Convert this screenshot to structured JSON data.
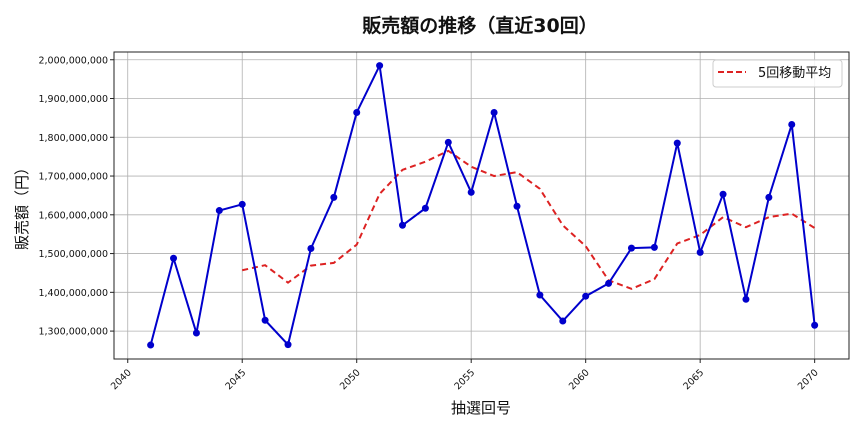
{
  "chart_data": {
    "type": "line",
    "title": "販売額の推移（直近30回）",
    "xlabel": "抽選回号",
    "ylabel": "販売額（円）",
    "x": [
      2041,
      2042,
      2043,
      2044,
      2045,
      2046,
      2047,
      2048,
      2049,
      2050,
      2051,
      2052,
      2053,
      2054,
      2055,
      2056,
      2057,
      2058,
      2059,
      2060,
      2061,
      2062,
      2063,
      2064,
      2065,
      2066,
      2067,
      2068,
      2069,
      2070
    ],
    "series": [
      {
        "name": "販売額",
        "style": "solid-with-markers",
        "color": "#0000cc",
        "values": [
          1264000000,
          1488000000,
          1295000000,
          1611000000,
          1627000000,
          1328000000,
          1265000000,
          1513000000,
          1645000000,
          1864000000,
          1985000000,
          1573000000,
          1617000000,
          1787000000,
          1658000000,
          1864000000,
          1622000000,
          1393000000,
          1326000000,
          1390000000,
          1423000000,
          1514000000,
          1516000000,
          1785000000,
          1503000000,
          1653000000,
          1382000000,
          1645000000,
          1833000000,
          1315000000
        ]
      },
      {
        "name": "5回移動平均",
        "style": "dashed",
        "color": "#dd2222",
        "values": [
          null,
          null,
          null,
          null,
          1457000000,
          1470000000,
          1425000000,
          1469000000,
          1476000000,
          1523000000,
          1654000000,
          1716000000,
          1737000000,
          1765000000,
          1724000000,
          1700000000,
          1710000000,
          1667000000,
          1573000000,
          1519000000,
          1431000000,
          1409000000,
          1434000000,
          1526000000,
          1548000000,
          1594000000,
          1568000000,
          1594000000,
          1603000000,
          1566000000
        ]
      }
    ],
    "xticks": [
      2040,
      2045,
      2050,
      2055,
      2060,
      2065,
      2070
    ],
    "yticks": [
      1300000000,
      1400000000,
      1500000000,
      1600000000,
      1700000000,
      1800000000,
      1900000000,
      2000000000
    ],
    "ytick_labels": [
      "1,300,000,000",
      "1,400,000,000",
      "1,500,000,000",
      "1,600,000,000",
      "1,700,000,000",
      "1,800,000,000",
      "1,900,000,000",
      "2,000,000,000"
    ],
    "xlim": [
      2039.4,
      2071.5
    ],
    "ylim": [
      1228000000,
      2020000000
    ],
    "grid": true,
    "legend": {
      "position": "upper right",
      "entries": [
        "5回移動平均"
      ]
    }
  }
}
